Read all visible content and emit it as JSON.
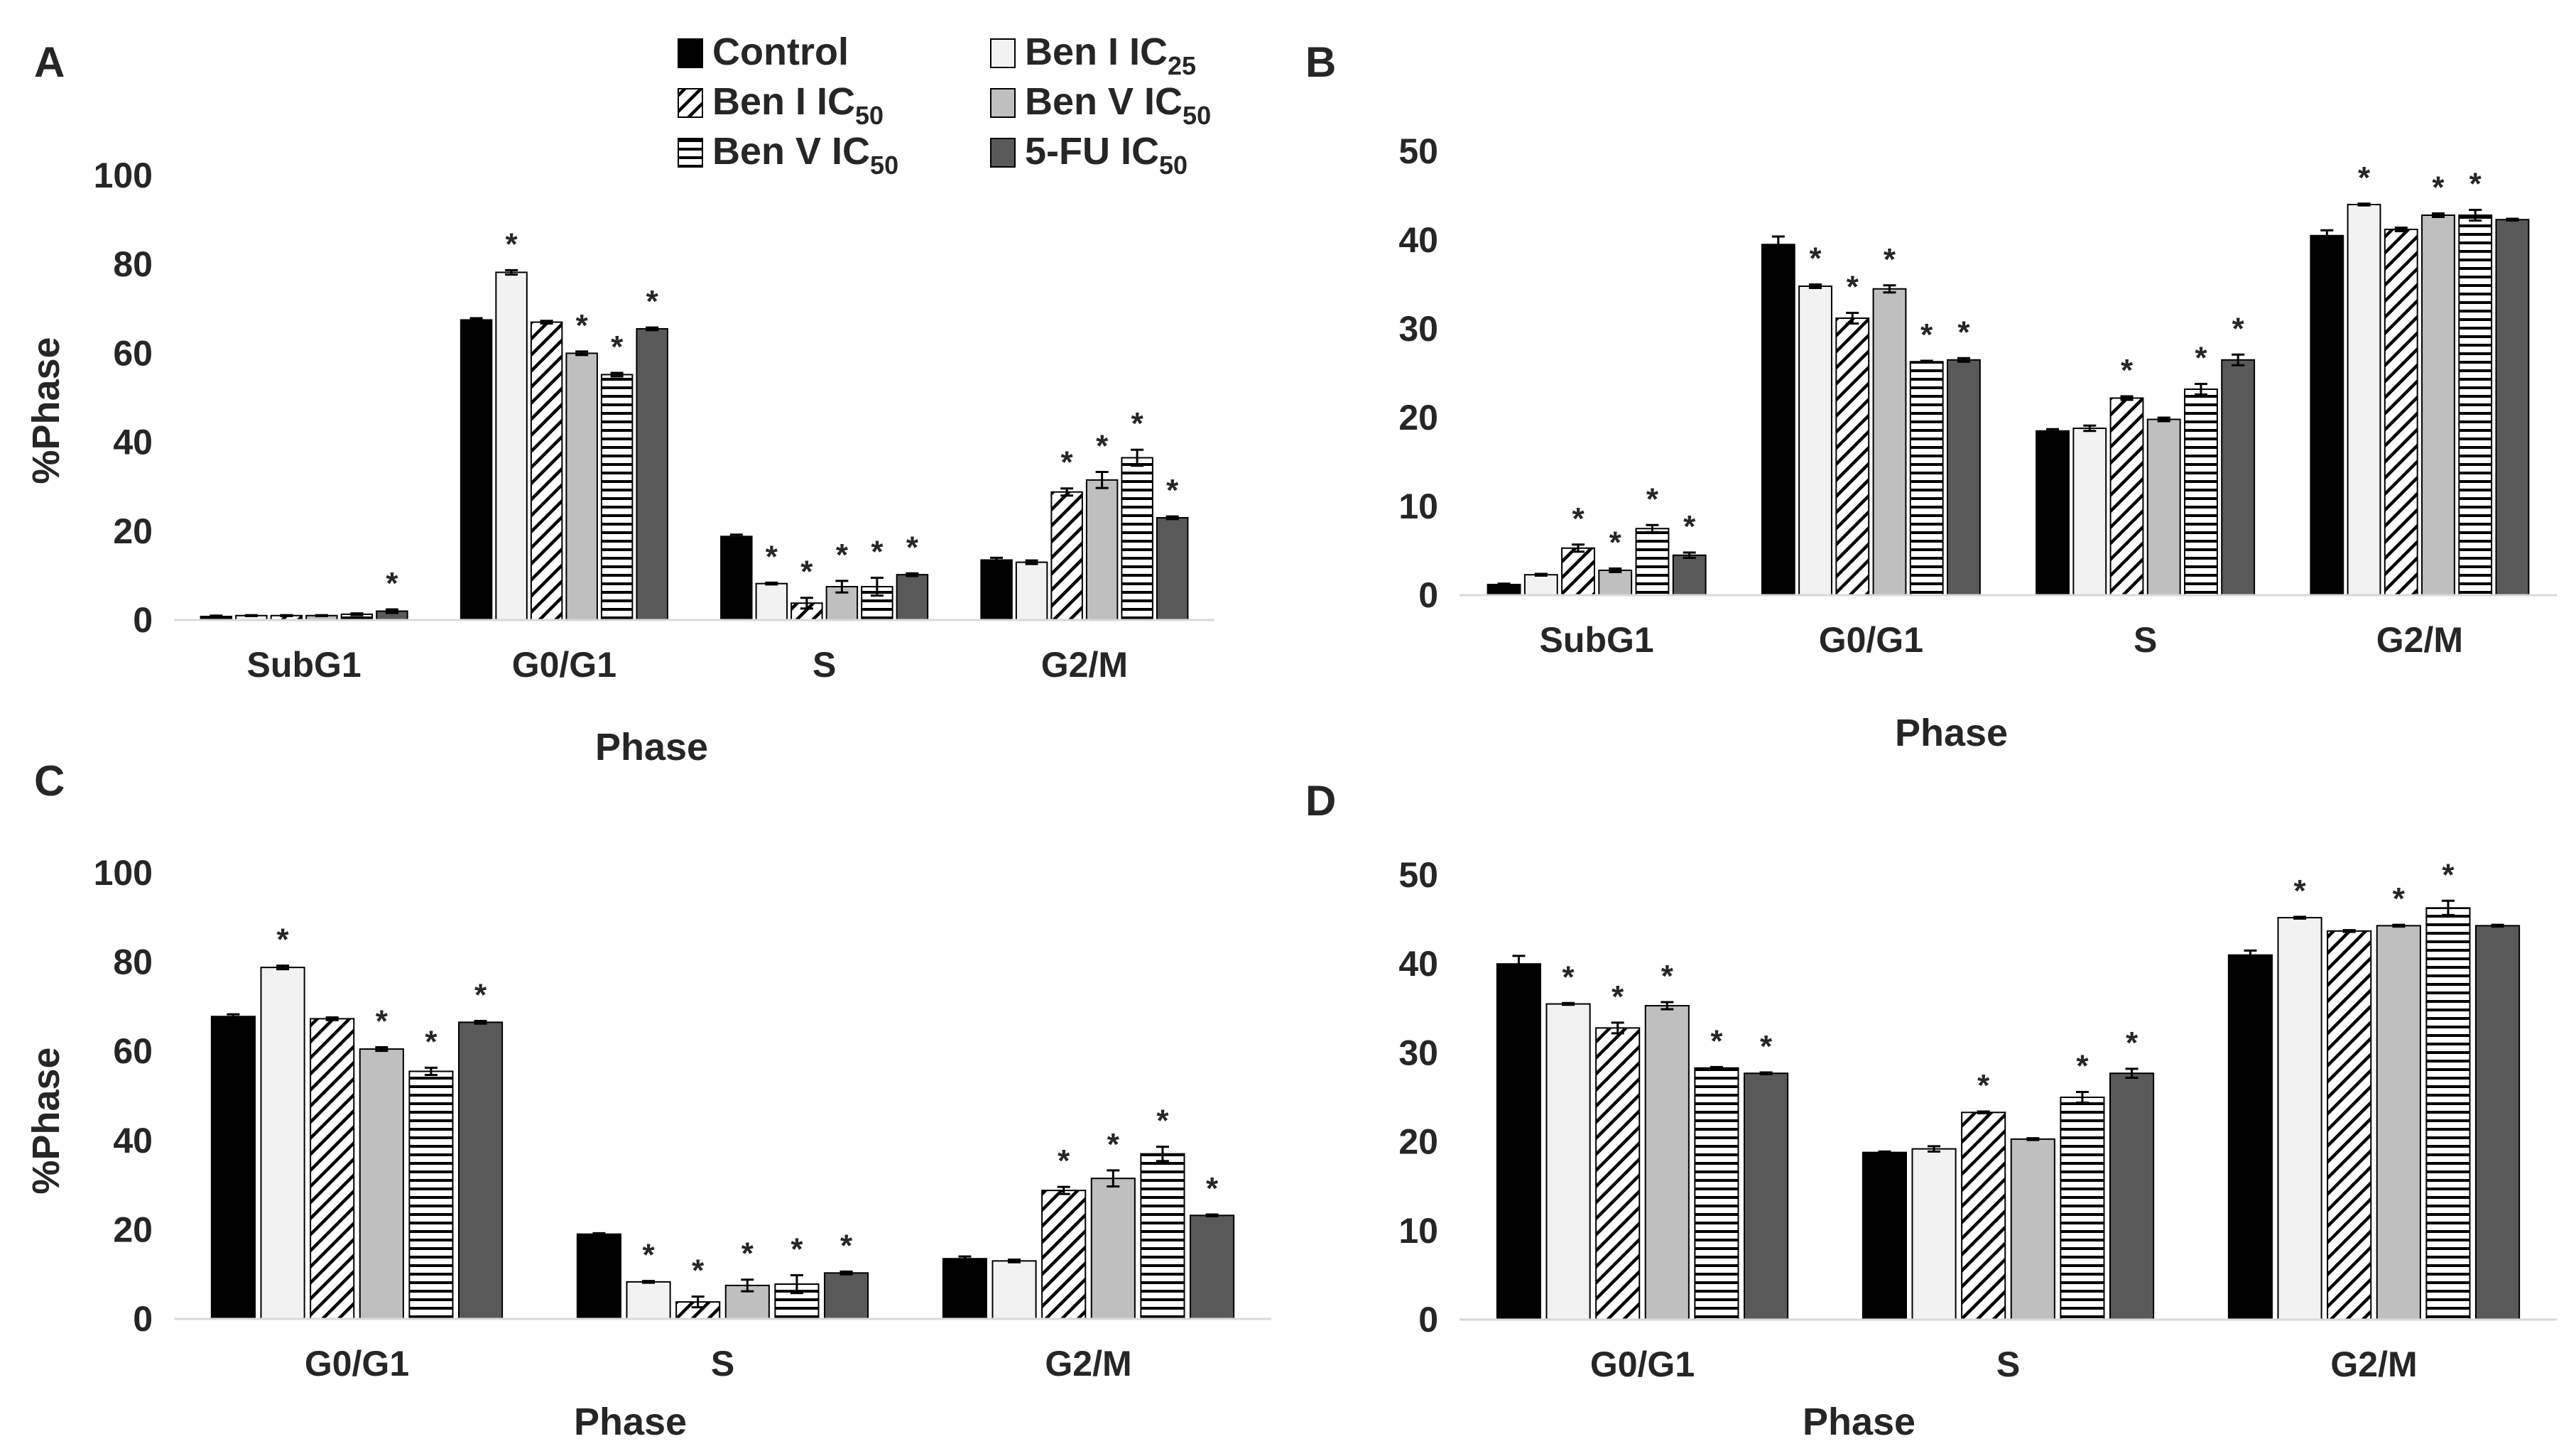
{
  "legend": [
    {
      "label": "Control",
      "sub": ""
    },
    {
      "label": "Ben I IC",
      "sub": "25"
    },
    {
      "label": "Ben I IC",
      "sub": "50"
    },
    {
      "label": "Ben V IC",
      "sub": "50"
    },
    {
      "label": "Ben V IC",
      "sub": "50"
    },
    {
      "label": "5-FU IC",
      "sub": "50"
    }
  ],
  "series_style": [
    {
      "fill": "#000000",
      "pattern": "solid"
    },
    {
      "fill": "#f2f2f2",
      "pattern": "solid"
    },
    {
      "fill": "#ffffff",
      "pattern": "diagonal"
    },
    {
      "fill": "#bfbfbf",
      "pattern": "solid"
    },
    {
      "fill": "#ffffff",
      "pattern": "horizontal"
    },
    {
      "fill": "#595959",
      "pattern": "solid"
    }
  ],
  "chart_data": [
    {
      "panel": "A",
      "type": "bar",
      "categories": [
        "SubG1",
        "G0/G1",
        "S",
        "G2/M"
      ],
      "xlabel": "Phase",
      "ylabel": "%Phase",
      "ylim": [
        0,
        100
      ],
      "yticks": [
        "0",
        "20",
        "40",
        "60",
        "80",
        "100"
      ],
      "series": [
        {
          "name": "Control",
          "values": [
            0.8,
            67.5,
            18.8,
            13.5
          ],
          "errors": [
            0.2,
            0.4,
            0.4,
            0.5
          ],
          "sig": [
            false,
            false,
            false,
            false
          ]
        },
        {
          "name": "Ben I IC25",
          "values": [
            1.0,
            78.2,
            8.2,
            13.0
          ],
          "errors": [
            0.1,
            0.5,
            0.2,
            0.4
          ],
          "sig": [
            false,
            true,
            true,
            false
          ]
        },
        {
          "name": "Ben I IC50",
          "values": [
            1.0,
            67.0,
            3.8,
            28.8
          ],
          "errors": [
            0.1,
            0.3,
            1.2,
            0.8
          ],
          "sig": [
            false,
            false,
            true,
            true
          ]
        },
        {
          "name": "Ben V IC50",
          "values": [
            1.0,
            60.0,
            7.5,
            31.5
          ],
          "errors": [
            0.1,
            0.4,
            1.3,
            1.8
          ],
          "sig": [
            false,
            true,
            true,
            true
          ]
        },
        {
          "name": "Ben V IC50",
          "values": [
            1.3,
            55.2,
            7.5,
            36.5
          ],
          "errors": [
            0.2,
            0.4,
            2.0,
            1.8
          ],
          "sig": [
            false,
            true,
            true,
            true
          ]
        },
        {
          "name": "5-FU IC50",
          "values": [
            2.0,
            65.5,
            10.2,
            23.0
          ],
          "errors": [
            0.4,
            0.3,
            0.3,
            0.3
          ],
          "sig": [
            true,
            true,
            true,
            true
          ]
        }
      ]
    },
    {
      "panel": "B",
      "type": "bar",
      "categories": [
        "SubG1",
        "G0/G1",
        "S",
        "G2/M"
      ],
      "xlabel": "Phase",
      "ylabel": "",
      "ylim": [
        0,
        50
      ],
      "yticks": [
        "0",
        "10",
        "20",
        "30",
        "40",
        "50"
      ],
      "series": [
        {
          "name": "Control",
          "values": [
            1.2,
            39.5,
            18.5,
            40.5
          ],
          "errors": [
            0.1,
            0.9,
            0.2,
            0.6
          ],
          "sig": [
            false,
            false,
            false,
            false
          ]
        },
        {
          "name": "Ben I IC25",
          "values": [
            2.3,
            34.8,
            18.8,
            44.0
          ],
          "errors": [
            0.1,
            0.2,
            0.3,
            0.1
          ],
          "sig": [
            false,
            true,
            false,
            true
          ]
        },
        {
          "name": "Ben I IC50",
          "values": [
            5.3,
            31.2,
            22.2,
            41.2
          ],
          "errors": [
            0.4,
            0.6,
            0.2,
            0.2
          ],
          "sig": [
            true,
            true,
            true,
            false
          ]
        },
        {
          "name": "Ben V IC50",
          "values": [
            2.8,
            34.5,
            19.8,
            42.8
          ],
          "errors": [
            0.2,
            0.4,
            0.2,
            0.2
          ],
          "sig": [
            true,
            true,
            false,
            true
          ]
        },
        {
          "name": "Ben V IC50",
          "values": [
            7.5,
            26.3,
            23.2,
            42.8
          ],
          "errors": [
            0.4,
            0.1,
            0.6,
            0.6
          ],
          "sig": [
            true,
            true,
            true,
            true
          ]
        },
        {
          "name": "5-FU IC50",
          "values": [
            4.5,
            26.5,
            26.5,
            42.3
          ],
          "errors": [
            0.3,
            0.2,
            0.6,
            0.1
          ],
          "sig": [
            true,
            true,
            true,
            false
          ]
        }
      ]
    },
    {
      "panel": "C",
      "type": "bar",
      "categories": [
        "G0/G1",
        "S",
        "G2/M"
      ],
      "xlabel": "Phase",
      "ylabel": "%Phase",
      "ylim": [
        0,
        100
      ],
      "yticks": [
        "0",
        "20",
        "40",
        "60",
        "80",
        "100"
      ],
      "series": [
        {
          "name": "Control",
          "values": [
            67.8,
            19.0,
            13.5
          ],
          "errors": [
            0.5,
            0.2,
            0.5
          ],
          "sig": [
            false,
            false,
            false
          ]
        },
        {
          "name": "Ben I IC25",
          "values": [
            78.8,
            8.3,
            13.0
          ],
          "errors": [
            0.4,
            0.2,
            0.3
          ],
          "sig": [
            true,
            true,
            false
          ]
        },
        {
          "name": "Ben I IC50",
          "values": [
            67.3,
            3.8,
            28.8
          ],
          "errors": [
            0.3,
            1.2,
            0.8
          ],
          "sig": [
            false,
            true,
            true
          ]
        },
        {
          "name": "Ben V IC50",
          "values": [
            60.5,
            7.5,
            31.5
          ],
          "errors": [
            0.4,
            1.3,
            1.8
          ],
          "sig": [
            true,
            true,
            true
          ]
        },
        {
          "name": "Ben V IC50",
          "values": [
            55.5,
            7.8,
            37.0
          ],
          "errors": [
            0.8,
            2.0,
            1.6
          ],
          "sig": [
            true,
            true,
            true
          ]
        },
        {
          "name": "5-FU IC50",
          "values": [
            66.5,
            10.3,
            23.2
          ],
          "errors": [
            0.3,
            0.3,
            0.2
          ],
          "sig": [
            true,
            true,
            true
          ]
        }
      ]
    },
    {
      "panel": "D",
      "type": "bar",
      "categories": [
        "G0/G1",
        "S",
        "G2/M"
      ],
      "xlabel": "Phase",
      "ylabel": "",
      "ylim": [
        0,
        50
      ],
      "yticks": [
        "0",
        "10",
        "20",
        "30",
        "40",
        "50"
      ],
      "series": [
        {
          "name": "Control",
          "values": [
            40.0,
            18.8,
            41.0
          ],
          "errors": [
            0.9,
            0.1,
            0.5
          ],
          "sig": [
            false,
            false,
            false
          ]
        },
        {
          "name": "Ben I IC25",
          "values": [
            35.5,
            19.2,
            45.2
          ],
          "errors": [
            0.1,
            0.3,
            0.1
          ],
          "sig": [
            true,
            false,
            true
          ]
        },
        {
          "name": "Ben I IC50",
          "values": [
            32.8,
            23.3,
            43.7
          ],
          "errors": [
            0.6,
            0.1,
            0.1
          ],
          "sig": [
            true,
            true,
            false
          ]
        },
        {
          "name": "Ben V IC50",
          "values": [
            35.3,
            20.3,
            44.3
          ],
          "errors": [
            0.4,
            0.1,
            0.1
          ],
          "sig": [
            true,
            false,
            true
          ]
        },
        {
          "name": "Ben V IC50",
          "values": [
            28.3,
            25.0,
            46.3
          ],
          "errors": [
            0.1,
            0.6,
            0.8
          ],
          "sig": [
            true,
            true,
            true
          ]
        },
        {
          "name": "5-FU IC50",
          "values": [
            27.7,
            27.7,
            44.3
          ],
          "errors": [
            0.1,
            0.5,
            0.1
          ],
          "sig": [
            true,
            true,
            false
          ]
        }
      ]
    }
  ]
}
